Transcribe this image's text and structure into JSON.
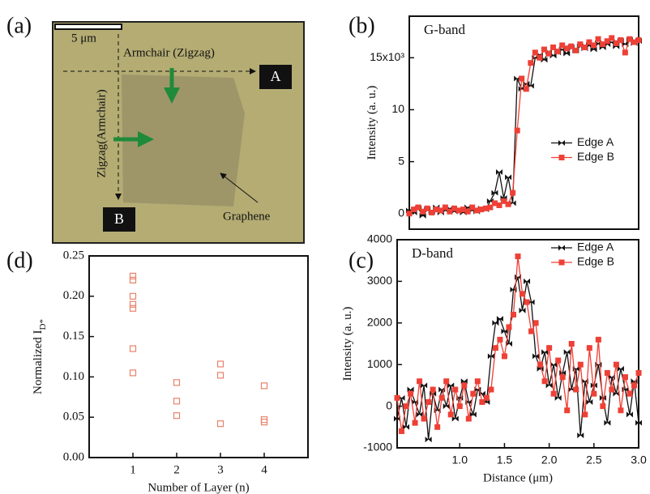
{
  "image_panel": {
    "panel_label": "(a)",
    "scale_bar": "5 μm",
    "horizontal_direction": "Armchair (Zigzag)",
    "vertical_direction": "Zigzag(Armchair)",
    "marker_a": "A",
    "marker_b": "B",
    "label": "Graphene"
  },
  "chart_data": [
    {
      "type": "line",
      "panel_label": "(b)",
      "title": "G-band",
      "ylabel": "Intensity (a. u.)",
      "legend": "center right",
      "xlim": [
        0.45,
        3.0
      ],
      "ylim": [
        -1.5,
        19
      ],
      "yticks": [
        0,
        5,
        10,
        {
          "value": 15,
          "label": "15x10³"
        }
      ],
      "x": [
        0.45,
        0.5,
        0.55,
        0.6,
        0.65,
        0.7,
        0.75,
        0.8,
        0.85,
        0.9,
        0.95,
        1.0,
        1.05,
        1.1,
        1.15,
        1.2,
        1.25,
        1.3,
        1.35,
        1.4,
        1.45,
        1.5,
        1.55,
        1.6,
        1.65,
        1.7,
        1.75,
        1.8,
        1.85,
        1.9,
        1.95,
        2.0,
        2.05,
        2.1,
        2.15,
        2.2,
        2.25,
        2.3,
        2.35,
        2.4,
        2.45,
        2.5,
        2.55,
        2.6,
        2.65,
        2.7,
        2.75,
        2.8,
        2.85,
        2.9,
        2.95,
        3.0
      ],
      "series": [
        {
          "name": "Edge A",
          "color": "#111111",
          "marker": "bowtie",
          "values": [
            0.3,
            0.1,
            0.5,
            -0.2,
            0.4,
            0.2,
            0.6,
            0.1,
            0.3,
            0.5,
            0.2,
            0.4,
            0.1,
            0.6,
            0.3,
            0.2,
            0.5,
            0.4,
            1.2,
            2.0,
            4.0,
            1.5,
            3.5,
            1.0,
            13.0,
            12.0,
            12.5,
            12.3,
            15.0,
            15.3,
            14.8,
            15.6,
            15.2,
            15.5,
            15.8,
            15.4,
            16.0,
            15.7,
            16.1,
            15.9,
            16.2,
            15.8,
            16.4,
            16.0,
            16.3,
            16.5,
            16.1,
            16.6,
            16.3,
            16.7,
            16.4,
            16.6
          ]
        },
        {
          "name": "Edge B",
          "color": "#ee4036",
          "marker": "square",
          "values": [
            0.0,
            0.4,
            0.6,
            0.2,
            0.5,
            0.1,
            0.4,
            0.3,
            0.6,
            0.2,
            0.5,
            0.3,
            0.4,
            0.2,
            0.6,
            0.3,
            0.4,
            0.5,
            0.6,
            1.0,
            0.8,
            1.2,
            0.9,
            2.0,
            8.0,
            13.0,
            12.0,
            14.5,
            15.5,
            15.0,
            15.8,
            15.4,
            16.0,
            15.6,
            16.2,
            15.9,
            16.1,
            15.7,
            16.3,
            16.0,
            16.5,
            16.2,
            16.8,
            16.3,
            16.6,
            16.9,
            16.4,
            16.7,
            15.5,
            16.8,
            16.5,
            16.7
          ]
        }
      ]
    },
    {
      "type": "line",
      "panel_label": "(c)",
      "title": "D-band",
      "ylabel": "Intensity (a. u.)",
      "xlabel": "Distance (μm)",
      "legend": "upper right",
      "xlim": [
        0.3,
        3.0
      ],
      "xticks": [
        {
          "value": 1,
          "label": "1.0"
        },
        1.5,
        {
          "value": 2,
          "label": "2.0"
        },
        2.5,
        {
          "value": 3,
          "label": "3.0"
        }
      ],
      "ylim": [
        -1000,
        4000
      ],
      "yticks": [
        -1000,
        0,
        1000,
        2000,
        3000,
        4000
      ],
      "x": [
        0.3,
        0.35,
        0.4,
        0.45,
        0.5,
        0.55,
        0.6,
        0.65,
        0.7,
        0.75,
        0.8,
        0.85,
        0.9,
        0.95,
        1.0,
        1.05,
        1.1,
        1.15,
        1.2,
        1.25,
        1.3,
        1.35,
        1.4,
        1.45,
        1.5,
        1.55,
        1.6,
        1.65,
        1.7,
        1.75,
        1.8,
        1.85,
        1.9,
        1.95,
        2.0,
        2.05,
        2.1,
        2.15,
        2.2,
        2.25,
        2.3,
        2.35,
        2.4,
        2.45,
        2.5,
        2.55,
        2.6,
        2.65,
        2.7,
        2.75,
        2.8,
        2.85,
        2.9,
        2.95,
        3.0
      ],
      "series": [
        {
          "name": "Edge A",
          "color": "#111111",
          "marker": "bowtie",
          "values": [
            -300,
            200,
            -500,
            400,
            100,
            -200,
            500,
            -800,
            300,
            -100,
            400,
            0,
            500,
            -300,
            200,
            600,
            100,
            -200,
            400,
            300,
            100,
            1200,
            2000,
            2100,
            1800,
            1500,
            2800,
            3100,
            2300,
            3000,
            2500,
            1200,
            900,
            1300,
            500,
            1000,
            200,
            800,
            1300,
            400,
            900,
            -700,
            600,
            100,
            500,
            1000,
            200,
            -400,
            700,
            300,
            900,
            400,
            -200,
            600,
            -400
          ]
        },
        {
          "name": "Edge B",
          "color": "#ee4036",
          "marker": "square",
          "values": [
            200,
            -600,
            0,
            300,
            -400,
            600,
            -300,
            100,
            400,
            -500,
            200,
            600,
            -200,
            400,
            0,
            500,
            -300,
            300,
            600,
            100,
            200,
            400,
            1400,
            1600,
            1200,
            1900,
            2200,
            3600,
            2700,
            2500,
            1800,
            2000,
            1000,
            600,
            1400,
            300,
            1100,
            700,
            -100,
            1500,
            400,
            1000,
            -200,
            1400,
            300,
            1600,
            0,
            800,
            400,
            1000,
            -100,
            700,
            300,
            500,
            800
          ]
        }
      ]
    },
    {
      "type": "scatter",
      "panel_label": "(d)",
      "ylabel": "Normalized I",
      "ylabel_sub": "D*",
      "xlabel": "Number of Layer (n)",
      "color": "#e8826a",
      "xlim": [
        0,
        5
      ],
      "xticks": [
        1,
        2,
        3,
        4
      ],
      "ylim": [
        0,
        0.25
      ],
      "yticks": [
        {
          "value": 0,
          "label": "0.00"
        },
        0.05,
        {
          "value": 0.1,
          "label": "0.10"
        },
        0.15,
        {
          "value": 0.2,
          "label": "0.20"
        },
        0.25
      ],
      "x": [
        1,
        1,
        1,
        1,
        1,
        1,
        1,
        2,
        2,
        2,
        3,
        3,
        3,
        4,
        4,
        4
      ],
      "values": [
        0.225,
        0.22,
        0.2,
        0.19,
        0.185,
        0.135,
        0.105,
        0.093,
        0.07,
        0.052,
        0.116,
        0.102,
        0.042,
        0.089,
        0.047,
        0.044
      ]
    }
  ]
}
